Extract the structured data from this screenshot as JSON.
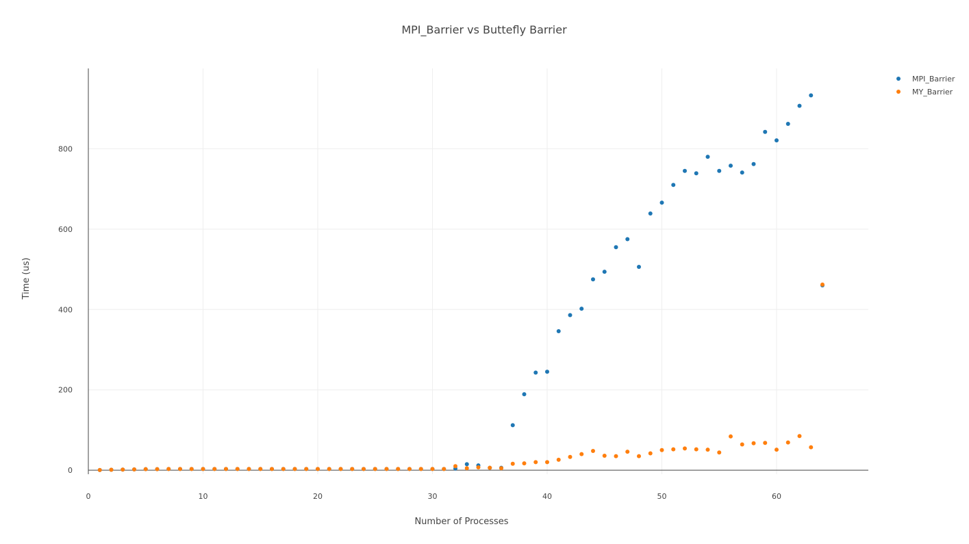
{
  "chart_data": {
    "type": "scatter",
    "title": "MPI_Barrier vs Buttefly Barrier",
    "xlabel": "Number of Processes",
    "ylabel": "Time (us)",
    "xlim": [
      0,
      68
    ],
    "ylim": [
      -10,
      1000
    ],
    "xticks": [
      0,
      10,
      20,
      30,
      40,
      50,
      60
    ],
    "yticks": [
      0,
      200,
      400,
      600,
      800
    ],
    "grid": true,
    "legend_position": "top-right",
    "series": [
      {
        "name": "MPI_Barrier",
        "color": "#1f77b4",
        "x": [
          1,
          2,
          3,
          4,
          5,
          6,
          7,
          8,
          9,
          10,
          11,
          12,
          13,
          14,
          15,
          16,
          17,
          18,
          19,
          20,
          21,
          22,
          23,
          24,
          25,
          26,
          27,
          28,
          29,
          30,
          31,
          32,
          33,
          34,
          35,
          36,
          37,
          38,
          39,
          40,
          41,
          42,
          43,
          44,
          45,
          46,
          47,
          48,
          49,
          50,
          51,
          52,
          53,
          54,
          55,
          56,
          57,
          58,
          59,
          60,
          61,
          62,
          63,
          64
        ],
        "y": [
          0.5,
          1,
          1.5,
          2,
          2.5,
          2.5,
          3,
          3,
          3,
          3,
          3,
          3,
          3,
          3,
          3,
          3,
          3,
          3,
          3,
          3,
          3,
          3,
          3,
          3,
          3,
          3,
          3,
          3,
          3,
          3,
          3,
          4,
          15,
          12,
          6,
          6,
          112,
          189,
          243,
          245,
          346,
          386,
          402,
          475,
          494,
          555,
          575,
          506,
          639,
          666,
          710,
          745,
          739,
          780,
          745,
          758,
          741,
          762,
          842,
          821,
          862,
          907,
          933,
          460
        ]
      },
      {
        "name": "MY_Barrier",
        "color": "#ff7f0e",
        "x": [
          1,
          2,
          3,
          4,
          5,
          6,
          7,
          8,
          9,
          10,
          11,
          12,
          13,
          14,
          15,
          16,
          17,
          18,
          19,
          20,
          21,
          22,
          23,
          24,
          25,
          26,
          27,
          28,
          29,
          30,
          31,
          32,
          33,
          34,
          35,
          36,
          37,
          38,
          39,
          40,
          41,
          42,
          43,
          44,
          45,
          46,
          47,
          48,
          49,
          50,
          51,
          52,
          53,
          54,
          55,
          56,
          57,
          58,
          59,
          60,
          61,
          62,
          63,
          64
        ],
        "y": [
          0.5,
          1,
          1.5,
          2,
          2.5,
          2.5,
          3,
          3,
          3,
          3,
          3,
          3,
          3,
          3,
          3,
          3,
          3,
          3,
          3,
          3,
          3,
          3,
          3,
          3,
          3,
          3,
          3,
          3,
          3,
          3,
          3,
          10,
          5,
          7,
          6,
          5,
          16,
          17,
          20,
          20,
          26,
          33,
          40,
          48,
          36,
          35,
          46,
          35,
          42,
          50,
          52,
          54,
          52,
          51,
          44,
          84,
          64,
          67,
          68,
          51,
          69,
          85,
          57,
          462
        ]
      }
    ]
  }
}
